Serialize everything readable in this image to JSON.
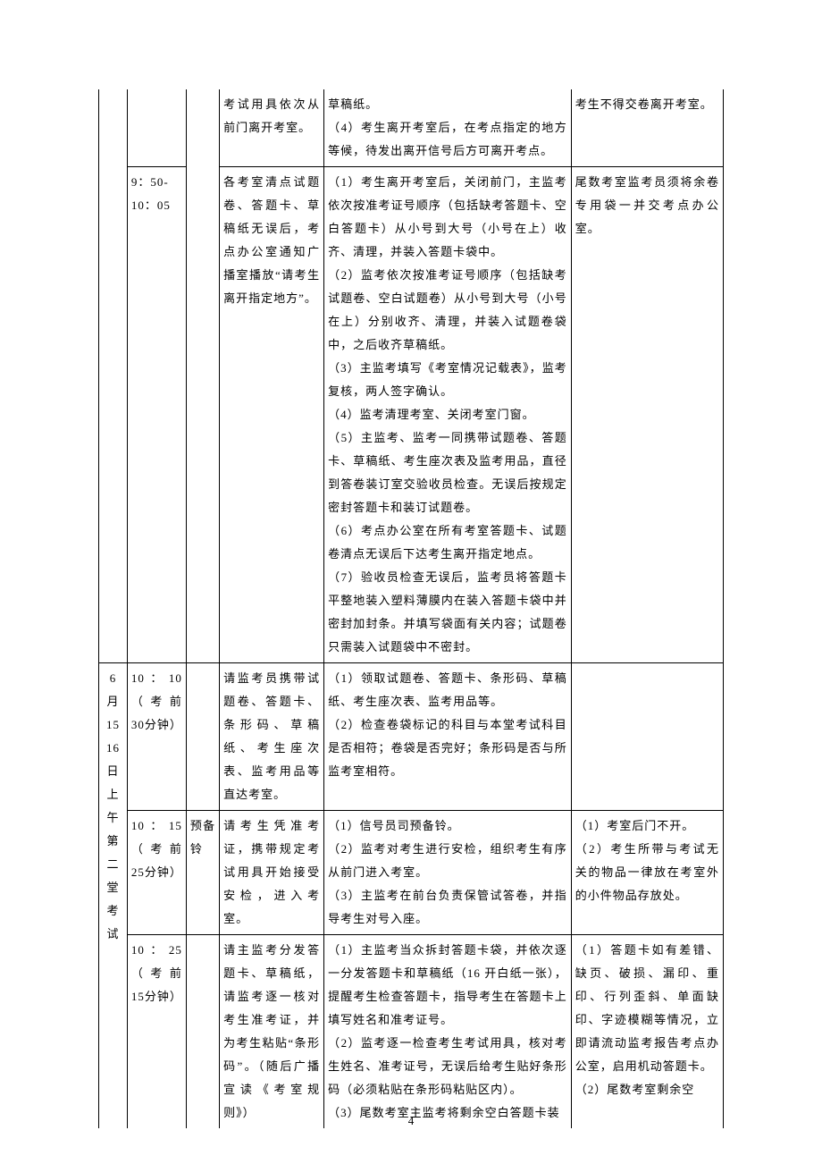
{
  "page_number": "4",
  "table": {
    "rows": [
      {
        "c1": "",
        "c2": "",
        "c3": "",
        "c4": "考试用具依次从前门离开考室。",
        "c5": "草稿纸。\n（4）考生离开考室后，在考点指定的地方等候，待发出离开信号后方可离开考点。",
        "c6": "考生不得交卷离开考室。"
      },
      {
        "c1": "",
        "c2_a": "9：50-",
        "c2_b": "10：05",
        "c3": "",
        "c4": "各考室清点试题卷、答题卡、草稿纸无误后，考点办公室通知广播室播放“请考生离开指定地方”。",
        "c5": "（1）考生离开考室后，关闭前门，主监考依次按准考证号顺序（包括缺考答题卡、空白答题卡）从小号到大号（小号在上）收齐、清理，并装入答题卡袋中。\n（2）监考依次按准考证号顺序（包括缺考试题卷、空白试题卷）从小号到大号（小号在上）分别收齐、清理，并装入试题卷袋中，之后收齐草稿纸。\n（3）主监考填写《考室情况记载表》，监考复核，两人签字确认。\n（4）监考清理考室、关闭考室门窗。\n（5）主监考、监考一同携带试题卷、答题卡、草稿纸、考生座次表及监考用品，直径到答卷装订室交验收员检查。无误后按规定密封答题卡和装订试题卷。\n（6）考点办公室在所有考室答题卡、试题卷清点无误后下达考生离开指定地点。\n（7）验收员检查无误后，监考员将答题卡平整地装入塑料薄膜内在装入答题卡袋中并密封加封条。并填写袋面有关内容；试题卷只需装入试题袋中不密封。",
        "c6": "尾数考室监考员须将余卷专用袋一并交考点办公室。"
      },
      {
        "c1_lines": [
          "6",
          "月",
          "15",
          "16",
          "日",
          "上",
          "午",
          "第",
          "二",
          "堂",
          "考",
          "试"
        ],
        "c2": "10：10（考前 30分钟）",
        "c3": "",
        "c4": "请监考员携带试题卷、答题卡、条形码、草稿纸、考生座次表、监考用品等直达考室。",
        "c5": "（1）领取试题卷、答题卡、条形码、草稿纸、考生座次表、监考用品等。\n（2）检查卷袋标记的科目与本堂考试科目是否相符；卷袋是否完好；条形码是否与所监考室相符。",
        "c6": ""
      },
      {
        "c2": "10：15（考前 25分钟）",
        "c3": "预备铃",
        "c4": "请考生凭准考证，携带规定考试用具开始接受安检，进入考室。",
        "c5": "（1）信号员司预备铃。\n（2）监考对考生进行安检，组织考生有序从前门进入考室。\n（3）主监考在前台负责保管试答卷，并指导考生对号入座。",
        "c6": "（1）考室后门不开。\n（2）考生所带与考试无关的物品一律放在考室外的小件物品存放处。"
      },
      {
        "c2": "10：25（考前 15分钟）",
        "c3": "",
        "c4": "请主监考分发答题卡、草稿纸，请监考逐一核对考生准考证，并为考生粘贴“条形码”。（随后广播宣读《考室规则》）",
        "c5": "（1）主监考当众拆封答题卡袋，并依次逐一分发答题卡和草稿纸（16 开白纸一张），提醒考生检查答题卡，指导考生在答题卡上填写姓名和准考证号。\n（2）监考逐一检查考生考试用具，核对考生姓名、准考证号，无误后给考生贴好条形码（必须粘贴在条形码粘贴区内）。\n（3）尾数考室主监考将剩余空白答题卡装",
        "c6": "（1）答题卡如有差错、缺页、破损、漏印、重印、行列歪斜、单面缺印、字迹模糊等情况，立即请流动监考报告考点办公室，启用机动答题卡。\n（2）尾数考室剩余空"
      }
    ]
  }
}
